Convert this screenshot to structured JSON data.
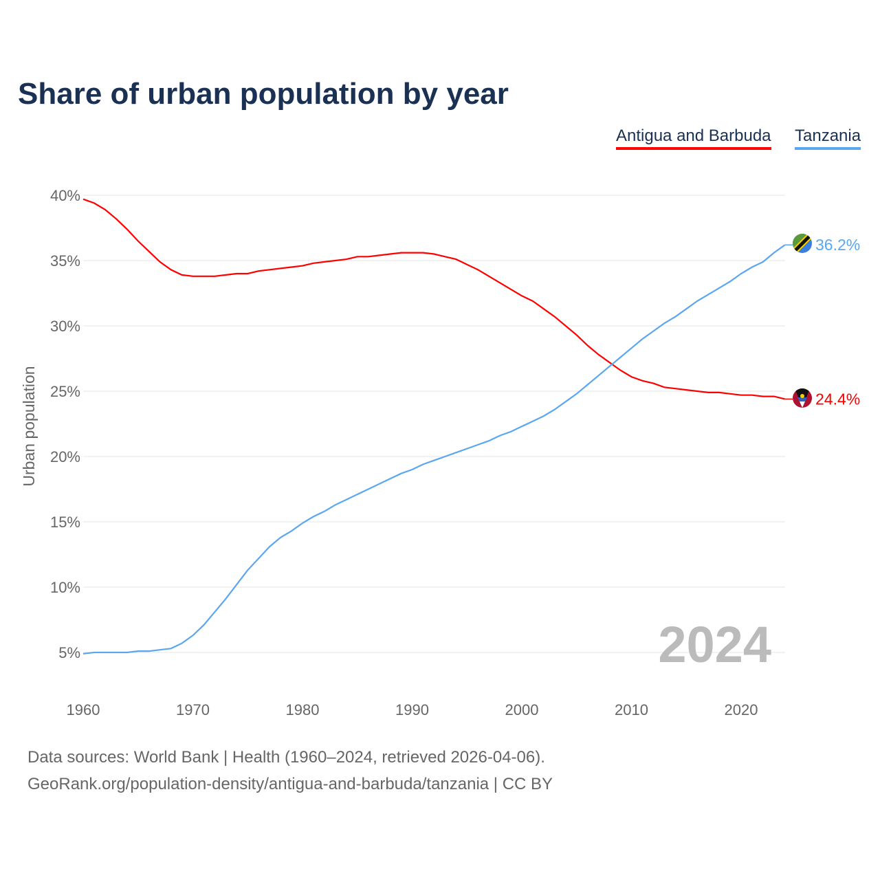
{
  "chart_data": {
    "type": "line",
    "title": "Share of urban population by year",
    "xlabel": "",
    "ylabel": "Urban population",
    "xlim": [
      1960,
      2024
    ],
    "ylim": [
      3,
      41
    ],
    "y_ticks": [
      "5%",
      "10%",
      "15%",
      "20%",
      "25%",
      "30%",
      "35%",
      "40%"
    ],
    "y_tick_values": [
      5,
      10,
      15,
      20,
      25,
      30,
      35,
      40
    ],
    "x_ticks": [
      "1960",
      "1970",
      "1980",
      "1990",
      "2000",
      "2010",
      "2020"
    ],
    "x_tick_values": [
      1960,
      1970,
      1980,
      1990,
      2000,
      2010,
      2020
    ],
    "grid": true,
    "legend_position": "top-right",
    "year_label": "2024",
    "x": [
      1960,
      1961,
      1962,
      1963,
      1964,
      1965,
      1966,
      1967,
      1968,
      1969,
      1970,
      1971,
      1972,
      1973,
      1974,
      1975,
      1976,
      1977,
      1978,
      1979,
      1980,
      1981,
      1982,
      1983,
      1984,
      1985,
      1986,
      1987,
      1988,
      1989,
      1990,
      1991,
      1992,
      1993,
      1994,
      1995,
      1996,
      1997,
      1998,
      1999,
      2000,
      2001,
      2002,
      2003,
      2004,
      2005,
      2006,
      2007,
      2008,
      2009,
      2010,
      2011,
      2012,
      2013,
      2014,
      2015,
      2016,
      2017,
      2018,
      2019,
      2020,
      2021,
      2022,
      2023,
      2024
    ],
    "series": [
      {
        "name": "Antigua and Barbuda",
        "color": "#ff0000",
        "end_label": "24.4%",
        "values": [
          39.7,
          39.4,
          38.9,
          38.2,
          37.4,
          36.5,
          35.7,
          34.9,
          34.3,
          33.9,
          33.8,
          33.8,
          33.8,
          33.9,
          34.0,
          34.0,
          34.2,
          34.3,
          34.4,
          34.5,
          34.6,
          34.8,
          34.9,
          35.0,
          35.1,
          35.3,
          35.3,
          35.4,
          35.5,
          35.6,
          35.6,
          35.6,
          35.5,
          35.3,
          35.1,
          34.7,
          34.3,
          33.8,
          33.3,
          32.8,
          32.3,
          31.9,
          31.3,
          30.7,
          30.0,
          29.3,
          28.5,
          27.8,
          27.2,
          26.6,
          26.1,
          25.8,
          25.6,
          25.3,
          25.2,
          25.1,
          25.0,
          24.9,
          24.9,
          24.8,
          24.7,
          24.7,
          24.6,
          24.6,
          24.4
        ]
      },
      {
        "name": "Tanzania",
        "color": "#5aa7ef",
        "end_label": "36.2%",
        "values": [
          4.9,
          5.0,
          5.0,
          5.0,
          5.0,
          5.1,
          5.1,
          5.2,
          5.3,
          5.7,
          6.3,
          7.1,
          8.1,
          9.1,
          10.2,
          11.3,
          12.2,
          13.1,
          13.8,
          14.3,
          14.9,
          15.4,
          15.8,
          16.3,
          16.7,
          17.1,
          17.5,
          17.9,
          18.3,
          18.7,
          19.0,
          19.4,
          19.7,
          20.0,
          20.3,
          20.6,
          20.9,
          21.2,
          21.6,
          21.9,
          22.3,
          22.7,
          23.1,
          23.6,
          24.2,
          24.8,
          25.5,
          26.2,
          26.9,
          27.6,
          28.3,
          29.0,
          29.6,
          30.2,
          30.7,
          31.3,
          31.9,
          32.4,
          32.9,
          33.4,
          34.0,
          34.5,
          34.9,
          35.6,
          36.2
        ]
      }
    ]
  },
  "footer": {
    "line1": "Data sources: World Bank | Health (1960–2024, retrieved 2026-04-06).",
    "line2": "GeoRank.org/population-density/antigua-and-barbuda/tanzania | CC BY"
  }
}
